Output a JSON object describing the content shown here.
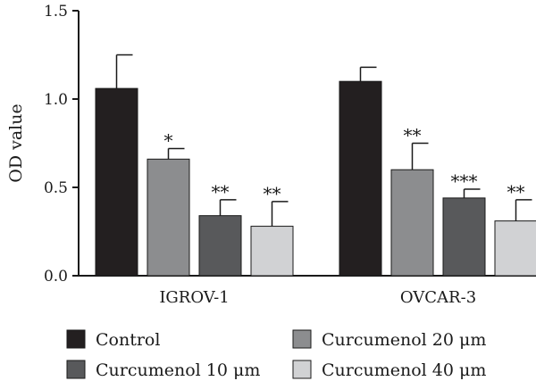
{
  "chart_data": {
    "type": "bar",
    "ylabel": "OD value",
    "xlabel": "",
    "ylim": [
      0,
      1.5
    ],
    "yticks": [
      "0.0",
      "0.5",
      "1.0",
      "1.5"
    ],
    "categories": [
      "IGROV-1",
      "OVCAR-3"
    ],
    "series": [
      {
        "name": "Control",
        "color": "#231f20",
        "values": [
          1.06,
          1.1
        ],
        "errors": [
          0.19,
          0.08
        ],
        "significance": [
          "",
          ""
        ]
      },
      {
        "name": "Curcumenol 20 μm",
        "color": "#8c8d8f",
        "values": [
          0.66,
          0.6
        ],
        "errors": [
          0.06,
          0.15
        ],
        "significance": [
          "*",
          "**"
        ]
      },
      {
        "name": "Curcumenol 10 μm",
        "color": "#58595b",
        "values": [
          0.34,
          0.44
        ],
        "errors": [
          0.09,
          0.05
        ],
        "significance": [
          "**",
          "***"
        ]
      },
      {
        "name": "Curcumenol 40 μm",
        "color": "#d1d2d4",
        "values": [
          0.28,
          0.31
        ],
        "errors": [
          0.14,
          0.12
        ],
        "significance": [
          "**",
          "**"
        ]
      }
    ],
    "legend": {
      "placement": "bottom",
      "order": [
        [
          0,
          1
        ],
        [
          2,
          3
        ]
      ]
    },
    "grid": false
  }
}
